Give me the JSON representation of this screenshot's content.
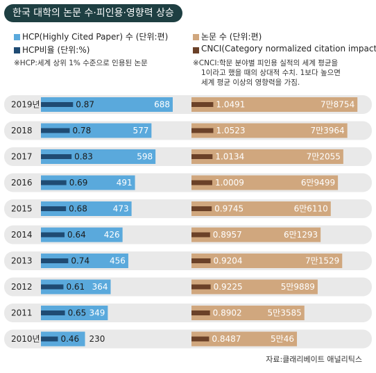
{
  "title": "한국 대학의 논문 수·피인용·영향력 상승",
  "legend_left": {
    "hcp_count": "HCP(Highly Cited Paper) 수 (단위:편)",
    "hcp_ratio": "HCP비율 (단위:%)",
    "note": "※HCP:세계 상위 1% 수준으로 인용된 논문"
  },
  "legend_right": {
    "paper_count": "논문 수 (단위:편)",
    "cnci": "CNCI(Category normalized citation impact)",
    "note_lines": [
      "※CNCI:학문 분야별 피인용 실적의 세계 평균을",
      "1이라고 했을 때의 상대적 수치. 1보다 높으면",
      "세계 평균 이상의 영향력을 가짐."
    ]
  },
  "source": "자료:클래리베이트 애널리틱스",
  "colors": {
    "hcp_bar": "#5aa9dc",
    "ratio_bar": "#1f4b73",
    "paper_bar": "#d0a77e",
    "cnci_bar": "#6b4128",
    "title_bg": "#1e3f42",
    "row_bg": "#e9e9e9"
  },
  "chart_data": {
    "type": "bar",
    "categories": [
      "2019년",
      "2018",
      "2017",
      "2016",
      "2015",
      "2014",
      "2013",
      "2012",
      "2011",
      "2010년"
    ],
    "series": [
      {
        "name": "HCP(Highly Cited Paper) 수",
        "unit": "편",
        "values": [
          688,
          577,
          598,
          491,
          473,
          426,
          456,
          364,
          349,
          230
        ]
      },
      {
        "name": "HCP비율",
        "unit": "%",
        "values": [
          0.87,
          0.78,
          0.83,
          0.69,
          0.68,
          0.64,
          0.74,
          0.61,
          0.65,
          0.46
        ]
      },
      {
        "name": "논문 수",
        "unit": "편",
        "values": [
          78754,
          73964,
          72055,
          69499,
          66110,
          61293,
          71529,
          59889,
          53585,
          50046
        ],
        "labels": [
          "7만8754",
          "7만3964",
          "7만2055",
          "6만9499",
          "6만6110",
          "6만1293",
          "7만1529",
          "5만9889",
          "5만3585",
          "5만46"
        ]
      },
      {
        "name": "CNCI",
        "unit": "",
        "values": [
          1.0491,
          1.0523,
          1.0134,
          1.0009,
          0.9745,
          0.8957,
          0.9204,
          0.9225,
          0.8902,
          0.8487
        ],
        "labels": [
          "1.0491",
          "1.0523",
          "1.0134",
          "1.0009",
          "0.9745",
          "0.8957",
          "0.9204",
          "0.9225",
          "0.8902",
          "0.8487"
        ]
      }
    ],
    "ratio_labels": [
      "0.87",
      "0.78",
      "0.83",
      "0.69",
      "0.68",
      "0.64",
      "0.74",
      "0.61",
      "0.65",
      "0.46"
    ]
  }
}
